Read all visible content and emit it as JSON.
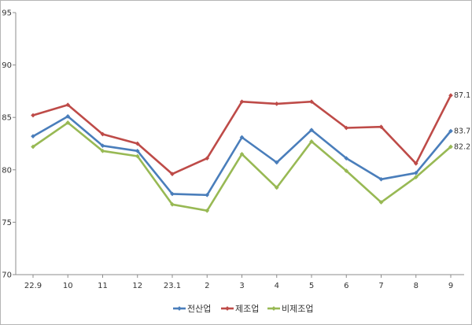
{
  "chart_data": {
    "type": "line",
    "title": "",
    "xlabel": "",
    "ylabel": "",
    "categories": [
      "22.9",
      "10",
      "11",
      "12",
      "23.1",
      "2",
      "3",
      "4",
      "5",
      "6",
      "7",
      "8",
      "9"
    ],
    "ylim": [
      70,
      95
    ],
    "yticks": [
      "70",
      "75",
      "80",
      "85",
      "90",
      "95"
    ],
    "grid": false,
    "legend_position": "bottom",
    "series": [
      {
        "name": "전산업",
        "color": "#4a7ebb",
        "values": [
          83.2,
          85.1,
          82.3,
          81.8,
          77.7,
          77.6,
          83.1,
          80.7,
          83.8,
          81.1,
          79.1,
          79.7,
          83.7
        ],
        "last_label": "83.7"
      },
      {
        "name": "제조업",
        "color": "#be4b48",
        "values": [
          85.2,
          86.2,
          83.4,
          82.5,
          79.6,
          81.1,
          86.5,
          86.3,
          86.5,
          84.0,
          84.1,
          80.6,
          87.1
        ],
        "last_label": "87.1"
      },
      {
        "name": "비제조업",
        "color": "#98b954",
        "values": [
          82.2,
          84.5,
          81.8,
          81.3,
          76.7,
          76.1,
          81.5,
          78.3,
          82.7,
          79.9,
          76.9,
          79.3,
          82.2
        ],
        "last_label": "82.2"
      }
    ]
  }
}
